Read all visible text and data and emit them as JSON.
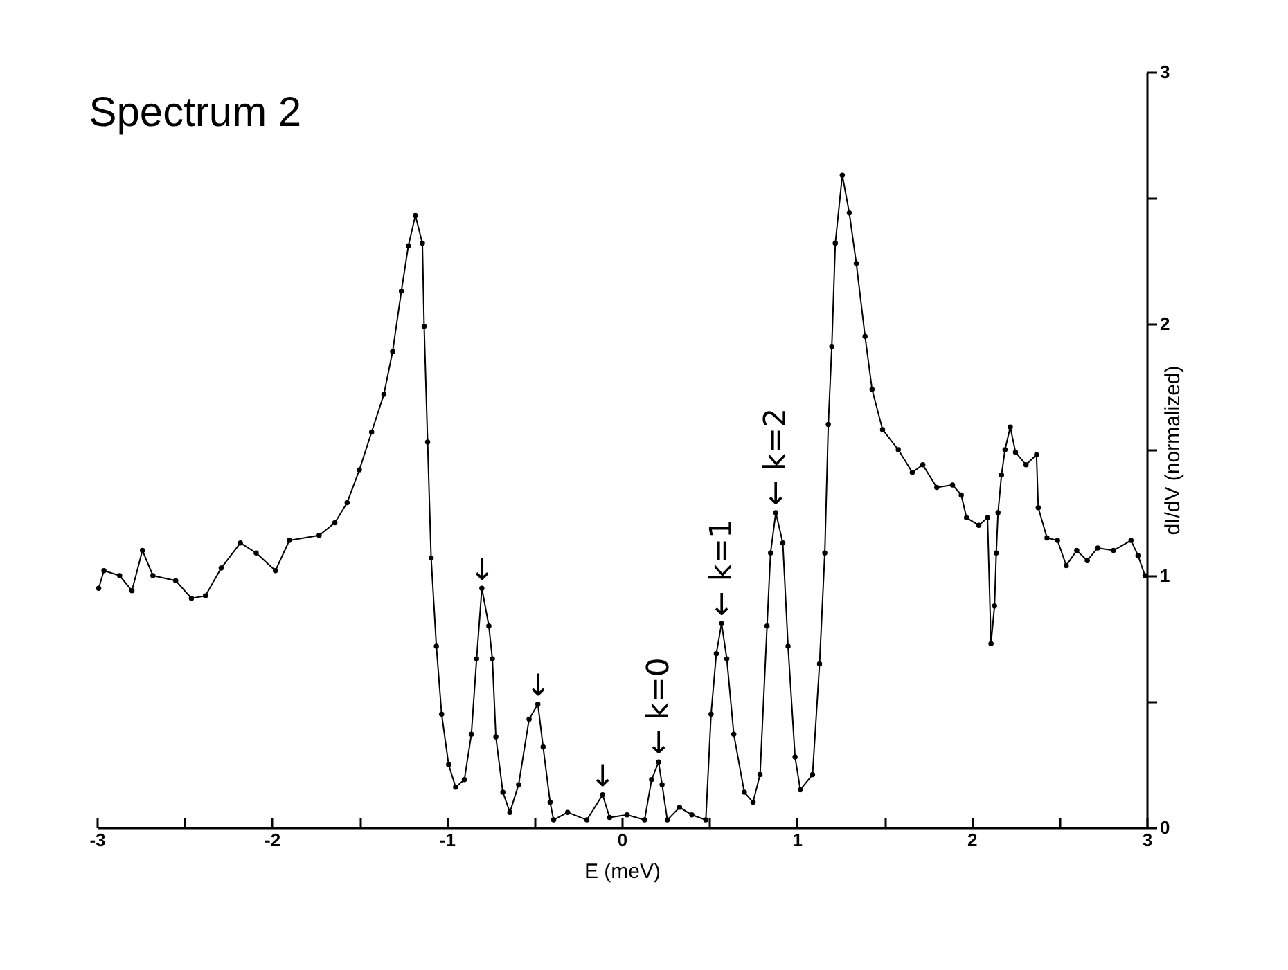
{
  "chart_data": {
    "type": "line",
    "title": "Spectrum 2",
    "xlabel": "E (meV)",
    "ylabel": "dI/dV (normalized)",
    "marker": "circle",
    "grid": false,
    "xlim": [
      -3,
      3
    ],
    "ylim": [
      0,
      3
    ],
    "xticks": [
      -3,
      {
        "value": -2.5,
        "label": null
      },
      -2,
      {
        "value": -1.5,
        "label": null
      },
      -1,
      {
        "value": -0.5,
        "label": null
      },
      0,
      {
        "value": 0.5,
        "label": null
      },
      1,
      {
        "value": 1.5,
        "label": null
      },
      2,
      {
        "value": 2.5,
        "label": null
      },
      3
    ],
    "yticks": [
      0,
      {
        "value": 0.5,
        "label": null
      },
      1,
      {
        "value": 1.5,
        "label": null
      },
      2,
      {
        "value": 2.5,
        "label": null
      },
      3
    ],
    "annotations": [
      {
        "text": "←",
        "x": -0.8,
        "y": 0.95
      },
      {
        "text": "←",
        "x": -0.48,
        "y": 0.49
      },
      {
        "text": "←",
        "x": -0.11,
        "y": 0.13
      },
      {
        "text": "← k=0",
        "x": 0.21,
        "y": 0.26
      },
      {
        "text": "← k=1",
        "x": 0.57,
        "y": 0.81
      },
      {
        "text": "← k=2",
        "x": 0.88,
        "y": 1.25
      }
    ],
    "series": [
      {
        "color": "#000000",
        "x": [
          -2.99,
          -2.96,
          -2.87,
          -2.8,
          -2.74,
          -2.68,
          -2.55,
          -2.46,
          -2.38,
          -2.29,
          -2.18,
          -2.09,
          -1.98,
          -1.9,
          -1.73,
          -1.64,
          -1.57,
          -1.5,
          -1.43,
          -1.36,
          -1.31,
          -1.26,
          -1.22,
          -1.18,
          -1.14,
          -1.13,
          -1.11,
          -1.09,
          -1.06,
          -1.03,
          -0.99,
          -0.95,
          -0.9,
          -0.86,
          -0.83,
          -0.8,
          -0.76,
          -0.74,
          -0.72,
          -0.68,
          -0.64,
          -0.59,
          -0.53,
          -0.48,
          -0.45,
          -0.41,
          -0.39,
          -0.31,
          -0.2,
          -0.11,
          -0.07,
          0.03,
          0.13,
          0.17,
          0.21,
          0.23,
          0.26,
          0.33,
          0.4,
          0.48,
          0.51,
          0.54,
          0.57,
          0.6,
          0.64,
          0.7,
          0.75,
          0.79,
          0.83,
          0.85,
          0.88,
          0.92,
          0.95,
          0.99,
          1.02,
          1.09,
          1.13,
          1.16,
          1.18,
          1.2,
          1.22,
          1.26,
          1.3,
          1.34,
          1.39,
          1.43,
          1.49,
          1.58,
          1.66,
          1.72,
          1.8,
          1.89,
          1.94,
          1.97,
          2.04,
          2.09,
          2.11,
          2.13,
          2.14,
          2.15,
          2.17,
          2.19,
          2.22,
          2.25,
          2.31,
          2.37,
          2.38,
          2.43,
          2.49,
          2.54,
          2.6,
          2.66,
          2.72,
          2.81,
          2.91,
          2.95,
          2.99
        ],
        "values": [
          0.95,
          1.02,
          1.0,
          0.94,
          1.1,
          1.0,
          0.98,
          0.91,
          0.92,
          1.03,
          1.13,
          1.09,
          1.02,
          1.14,
          1.16,
          1.21,
          1.29,
          1.42,
          1.57,
          1.72,
          1.89,
          2.13,
          2.31,
          2.43,
          2.32,
          1.99,
          1.53,
          1.07,
          0.72,
          0.45,
          0.25,
          0.16,
          0.19,
          0.37,
          0.67,
          0.95,
          0.8,
          0.67,
          0.36,
          0.14,
          0.06,
          0.17,
          0.43,
          0.49,
          0.32,
          0.1,
          0.03,
          0.06,
          0.03,
          0.13,
          0.04,
          0.05,
          0.03,
          0.19,
          0.26,
          0.17,
          0.03,
          0.08,
          0.05,
          0.03,
          0.45,
          0.69,
          0.81,
          0.67,
          0.37,
          0.14,
          0.1,
          0.21,
          0.8,
          1.09,
          1.25,
          1.13,
          0.72,
          0.28,
          0.15,
          0.21,
          0.65,
          1.09,
          1.6,
          1.91,
          2.32,
          2.59,
          2.44,
          2.24,
          1.95,
          1.74,
          1.58,
          1.5,
          1.41,
          1.44,
          1.35,
          1.36,
          1.32,
          1.23,
          1.2,
          1.23,
          0.73,
          0.88,
          1.09,
          1.25,
          1.4,
          1.5,
          1.59,
          1.49,
          1.44,
          1.48,
          1.27,
          1.15,
          1.14,
          1.04,
          1.1,
          1.06,
          1.11,
          1.1,
          1.14,
          1.08,
          1.0
        ]
      }
    ]
  }
}
